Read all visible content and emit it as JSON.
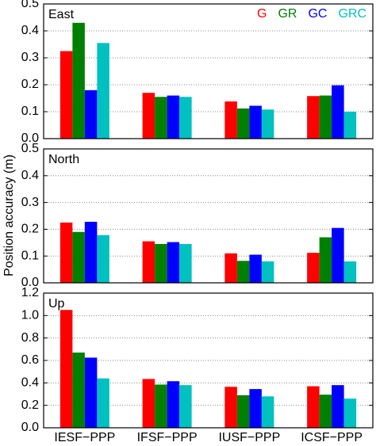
{
  "chart_data": [
    {
      "type": "bar",
      "title": "East",
      "series": [
        {
          "name": "G",
          "color": "#ff0000",
          "values": [
            0.325,
            0.17,
            0.138,
            0.158
          ]
        },
        {
          "name": "GR",
          "color": "#008000",
          "values": [
            0.43,
            0.155,
            0.112,
            0.16
          ]
        },
        {
          "name": "GC",
          "color": "#0000ff",
          "values": [
            0.18,
            0.16,
            0.122,
            0.198
          ]
        },
        {
          "name": "GRC",
          "color": "#00c0c0",
          "values": [
            0.355,
            0.155,
            0.108,
            0.1
          ]
        }
      ],
      "ylim": [
        0,
        0.5
      ],
      "yticks": [
        {
          "value": 0,
          "label": "0.0"
        },
        0.1,
        0.2,
        0.3,
        0.4,
        0.5
      ],
      "grid": true,
      "legend": "top-right"
    },
    {
      "type": "bar",
      "title": "North",
      "ylabel": "Position accuracy (m)",
      "series": [
        {
          "values": [
            0.225,
            0.155,
            0.11,
            0.112
          ]
        },
        {
          "values": [
            0.19,
            0.145,
            0.082,
            0.17
          ]
        },
        {
          "values": [
            0.228,
            0.152,
            0.105,
            0.205
          ]
        },
        {
          "values": [
            0.178,
            0.145,
            0.08,
            0.08
          ]
        }
      ],
      "ylim": [
        0,
        0.5
      ],
      "yticks": [
        {
          "value": 0,
          "label": "0.0"
        },
        0.1,
        0.2,
        0.3,
        0.4,
        0.5
      ],
      "grid": true
    },
    {
      "type": "bar",
      "title": "Up",
      "categories": [
        "IESF−PPP",
        "IFSF−PPP",
        "IUSF−PPP",
        "ICSF−PPP"
      ],
      "series": [
        {
          "values": [
            1.05,
            0.435,
            0.365,
            0.37
          ]
        },
        {
          "values": [
            0.67,
            0.385,
            0.29,
            0.295
          ]
        },
        {
          "values": [
            0.625,
            0.415,
            0.345,
            0.38
          ]
        },
        {
          "values": [
            0.44,
            0.38,
            0.28,
            0.26
          ]
        }
      ],
      "ylim": [
        0,
        1.2
      ],
      "yticks": [
        {
          "value": 0,
          "label": "0.0"
        },
        0.2,
        0.4,
        0.6,
        0.8,
        {
          "value": 1,
          "label": "1.0"
        },
        1.2
      ],
      "grid": true
    }
  ]
}
